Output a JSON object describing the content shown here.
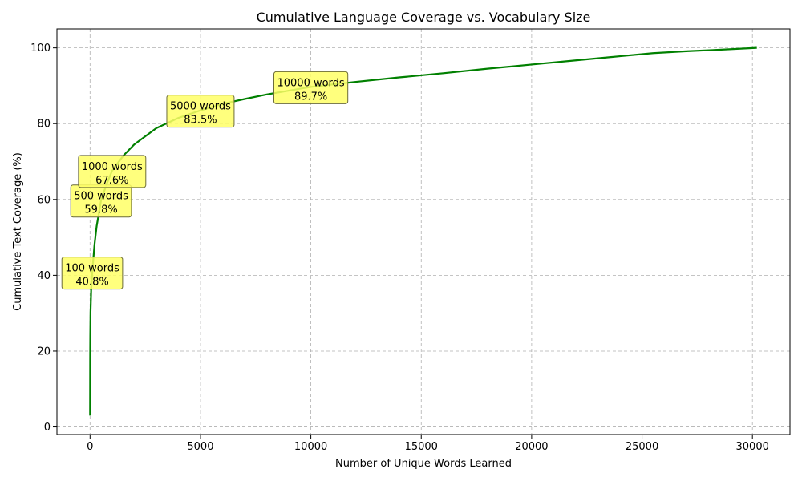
{
  "chart_data": {
    "type": "line",
    "title": "Cumulative Language Coverage vs. Vocabulary Size",
    "xlabel": "Number of Unique Words Learned",
    "ylabel": "Cumulative Text Coverage (%)",
    "xlim": [
      -1500,
      31700
    ],
    "ylim": [
      -2,
      105
    ],
    "x_ticks": [
      0,
      5000,
      10000,
      15000,
      20000,
      25000,
      30000
    ],
    "y_ticks": [
      0,
      20,
      40,
      60,
      80,
      100
    ],
    "grid": true,
    "line_color": "#008000",
    "annotation_color": "#ffff66",
    "series": [
      {
        "x": [
          1,
          5,
          10,
          20,
          50,
          100,
          200,
          300,
          500,
          750,
          1000,
          1500,
          2000,
          3000,
          4000,
          5000,
          6000,
          7000,
          8000,
          9000,
          10000,
          12000,
          14000,
          16000,
          18000,
          20000,
          22000,
          24000,
          25500,
          27000,
          28500,
          30200
        ],
        "y": [
          3,
          18,
          24,
          30,
          36,
          40.8,
          48,
          53,
          59.8,
          64,
          67.6,
          71.5,
          74.5,
          78.8,
          81.5,
          83.5,
          85.2,
          86.5,
          87.7,
          88.7,
          89.7,
          91.0,
          92.2,
          93.3,
          94.5,
          95.6,
          96.7,
          97.8,
          98.6,
          99.1,
          99.5,
          100
        ]
      }
    ],
    "annotations": [
      {
        "line1": "100 words",
        "line2": "40.8%",
        "x": 100,
        "y": 40.8
      },
      {
        "line1": "500 words",
        "line2": "59.8%",
        "x": 500,
        "y": 59.8
      },
      {
        "line1": "1000 words",
        "line2": "67.6%",
        "x": 1000,
        "y": 67.6
      },
      {
        "line1": "5000 words",
        "line2": "83.5%",
        "x": 5000,
        "y": 83.5
      },
      {
        "line1": "10000 words",
        "line2": "89.7%",
        "x": 10000,
        "y": 89.7
      }
    ]
  }
}
